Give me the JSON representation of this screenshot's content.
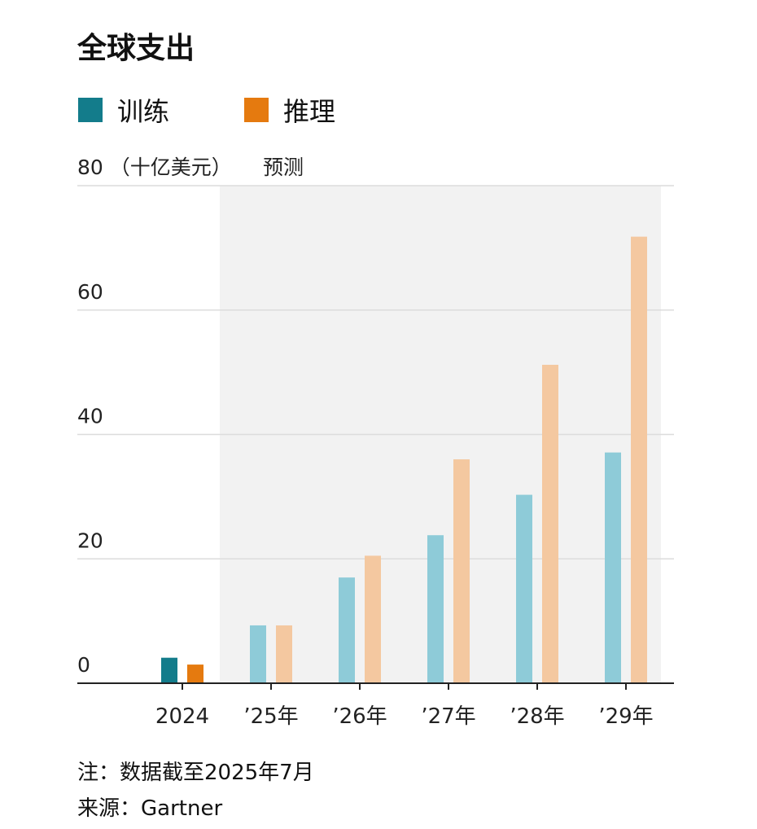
{
  "chart_data": {
    "type": "bar",
    "title": "全球支出",
    "ylabel": "（十亿美元）",
    "forecast_label": "预测",
    "categories": [
      "2024",
      "’25年",
      "’26年",
      "’27年",
      "’28年",
      "’29年"
    ],
    "forecast_from_index": 1,
    "series": [
      {
        "name": "训练",
        "color": "#137c8b",
        "forecast_color": "#8ecbd8",
        "values": [
          4.1,
          9.3,
          17.0,
          23.8,
          30.3,
          37.1
        ]
      },
      {
        "name": "推理",
        "color": "#e57a0f",
        "forecast_color": "#f4c8a0",
        "values": [
          3.0,
          9.3,
          20.5,
          36.0,
          51.2,
          71.8
        ]
      }
    ],
    "ylim": [
      0,
      80
    ],
    "yticks": [
      0,
      20,
      40,
      60,
      80
    ],
    "grid": true,
    "legend": "top-left",
    "forecast_shading": "#f2f2f2"
  },
  "notes": {
    "note": "注：数据截至2025年7月",
    "source": "来源：Gartner"
  }
}
